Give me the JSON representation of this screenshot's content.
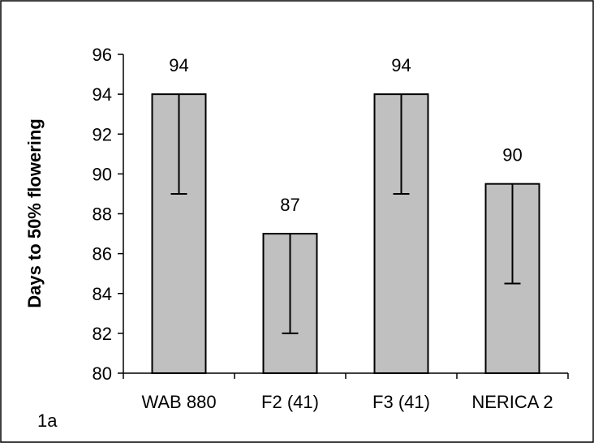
{
  "chart_data": {
    "type": "bar",
    "categories": [
      "WAB 880",
      "F2 (41)",
      "F3 (41)",
      "NERICA 2"
    ],
    "values": [
      94,
      87,
      94,
      89.5
    ],
    "data_labels": [
      "94",
      "87",
      "94",
      "90"
    ],
    "error_bars": [
      {
        "lower": 89,
        "upper": 94
      },
      {
        "lower": 82,
        "upper": 87
      },
      {
        "lower": 89,
        "upper": 94
      },
      {
        "lower": 84.5,
        "upper": 89.5
      }
    ],
    "ylabel": "Days to 50% flowering",
    "ylim": [
      80,
      96
    ],
    "yticks": [
      80,
      82,
      84,
      86,
      88,
      90,
      92,
      94,
      96
    ],
    "grid": false,
    "panel_label": "1a",
    "colors": {
      "bar_fill": "#c0c0c0",
      "bar_stroke": "#000000"
    }
  }
}
